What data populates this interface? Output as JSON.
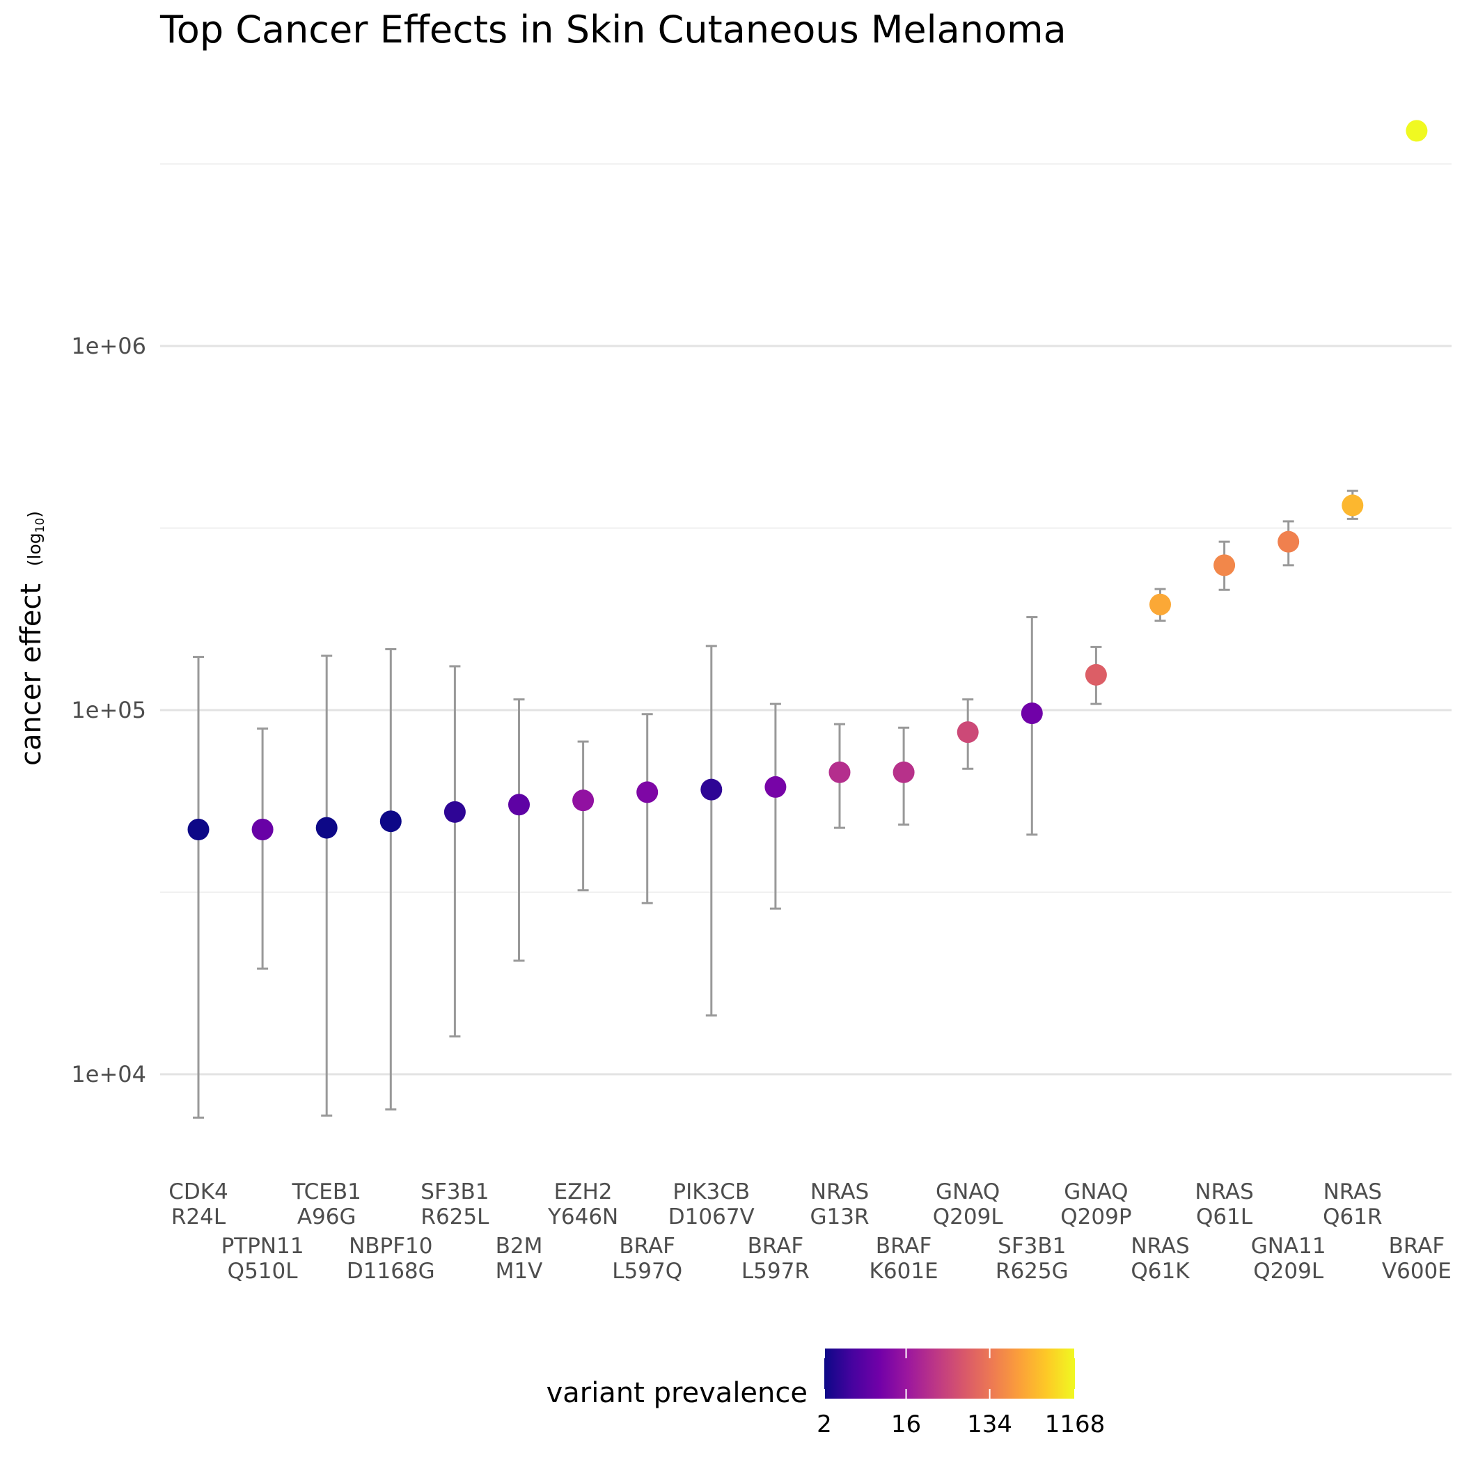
{
  "chart_data": {
    "type": "scatter",
    "title": "Top Cancer Effects in Skin Cutaneous Melanoma",
    "ylabel": "cancer effect",
    "ylabel_scale_note": "(log10)",
    "yscale": "log10",
    "ylim": [
      6000,
      4500000
    ],
    "yticks": [
      {
        "value": 10000,
        "label": "1e+04"
      },
      {
        "value": 100000,
        "label": "1e+05"
      },
      {
        "value": 1000000,
        "label": "1e+06"
      }
    ],
    "grid": true,
    "colorbar": {
      "title": "variant prevalence",
      "scale": "log",
      "min": 2,
      "max": 1168,
      "ticks": [
        {
          "value": 2,
          "label": "2"
        },
        {
          "value": 16,
          "label": "16"
        },
        {
          "value": 134,
          "label": "134"
        },
        {
          "value": 1168,
          "label": "1168"
        }
      ],
      "colors": [
        "#0d0887",
        "#46039f",
        "#7201a8",
        "#9c179e",
        "#bd3786",
        "#d8576b",
        "#ed7953",
        "#fb9f3a",
        "#fdca26",
        "#f0f921"
      ]
    },
    "legend_position": "bottom",
    "points": [
      {
        "gene": "CDK4",
        "variant": "R24L",
        "effect": 47000,
        "lower": 7600,
        "upper": 140000,
        "prevalence": 2
      },
      {
        "gene": "PTPN11",
        "variant": "Q510L",
        "effect": 47000,
        "lower": 19500,
        "upper": 89000,
        "prevalence": 7
      },
      {
        "gene": "TCEB1",
        "variant": "A96G",
        "effect": 47500,
        "lower": 7700,
        "upper": 141000,
        "prevalence": 2
      },
      {
        "gene": "NBPF10",
        "variant": "D1168G",
        "effect": 49500,
        "lower": 8000,
        "upper": 147000,
        "prevalence": 2
      },
      {
        "gene": "SF3B1",
        "variant": "R625L",
        "effect": 52500,
        "lower": 12700,
        "upper": 132000,
        "prevalence": 3
      },
      {
        "gene": "B2M",
        "variant": "M1V",
        "effect": 55000,
        "lower": 20500,
        "upper": 107000,
        "prevalence": 6
      },
      {
        "gene": "EZH2",
        "variant": "Y646N",
        "effect": 56500,
        "lower": 32000,
        "upper": 82000,
        "prevalence": 14
      },
      {
        "gene": "BRAF",
        "variant": "L597Q",
        "effect": 59500,
        "lower": 29500,
        "upper": 97500,
        "prevalence": 10
      },
      {
        "gene": "PIK3CB",
        "variant": "D1067V",
        "effect": 60500,
        "lower": 14500,
        "upper": 150000,
        "prevalence": 3
      },
      {
        "gene": "BRAF",
        "variant": "L597R",
        "effect": 61500,
        "lower": 28500,
        "upper": 104000,
        "prevalence": 9
      },
      {
        "gene": "NRAS",
        "variant": "G13R",
        "effect": 67500,
        "lower": 47500,
        "upper": 91500,
        "prevalence": 28
      },
      {
        "gene": "BRAF",
        "variant": "K601E",
        "effect": 67500,
        "lower": 48500,
        "upper": 89500,
        "prevalence": 30
      },
      {
        "gene": "GNAQ",
        "variant": "Q209L",
        "effect": 87000,
        "lower": 69000,
        "upper": 107000,
        "prevalence": 50
      },
      {
        "gene": "SF3B1",
        "variant": "R625G",
        "effect": 98000,
        "lower": 45500,
        "upper": 180000,
        "prevalence": 8
      },
      {
        "gene": "GNAQ",
        "variant": "Q209P",
        "effect": 125000,
        "lower": 104000,
        "upper": 149000,
        "prevalence": 80
      },
      {
        "gene": "NRAS",
        "variant": "Q61K",
        "effect": 195000,
        "lower": 176000,
        "upper": 215000,
        "prevalence": 330
      },
      {
        "gene": "NRAS",
        "variant": "Q61L",
        "effect": 250000,
        "lower": 214000,
        "upper": 290000,
        "prevalence": 180
      },
      {
        "gene": "GNA11",
        "variant": "Q209L",
        "effect": 290000,
        "lower": 250000,
        "upper": 330000,
        "prevalence": 160
      },
      {
        "gene": "NRAS",
        "variant": "Q61R",
        "effect": 365000,
        "lower": 335000,
        "upper": 400000,
        "prevalence": 420
      },
      {
        "gene": "BRAF",
        "variant": "V600E",
        "effect": 3900000,
        "lower": 3700000,
        "upper": 4100000,
        "prevalence": 1168
      }
    ]
  }
}
